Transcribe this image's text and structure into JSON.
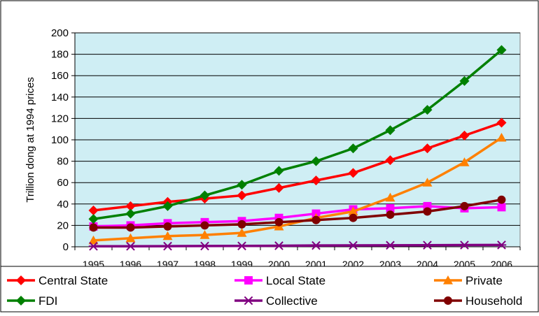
{
  "chart_data": {
    "type": "line",
    "title": "",
    "xlabel": "",
    "ylabel": "Trillion dong at 1994 prices",
    "ylim": [
      0,
      200
    ],
    "yticks": [
      0,
      20,
      40,
      60,
      80,
      100,
      120,
      140,
      160,
      180,
      200
    ],
    "grid": true,
    "plot_background": "#cfeef4",
    "legend_position": "bottom",
    "categories": [
      "1995",
      "1996",
      "1997",
      "1998",
      "1999",
      "2000",
      "2001",
      "2002",
      "2003",
      "2004",
      "2005",
      "2006"
    ],
    "series": [
      {
        "name": "Central State",
        "color": "#ff0000",
        "marker": "diamond",
        "values": [
          34,
          38,
          42,
          45,
          48,
          55,
          62,
          69,
          81,
          92,
          104,
          116
        ]
      },
      {
        "name": "Local State",
        "color": "#ff00ff",
        "marker": "square",
        "values": [
          19,
          20,
          22,
          23,
          24,
          27,
          31,
          35,
          36,
          38,
          36,
          37
        ]
      },
      {
        "name": "Private",
        "color": "#ff8000",
        "marker": "triangle",
        "values": [
          6,
          8,
          10,
          11,
          13,
          19,
          27,
          33,
          46,
          60,
          79,
          102
        ]
      },
      {
        "name": "FDI",
        "color": "#008000",
        "marker": "diamond",
        "values": [
          26,
          31,
          38,
          48,
          58,
          71,
          80,
          92,
          109,
          128,
          155,
          184
        ]
      },
      {
        "name": "Collective",
        "color": "#800080",
        "marker": "asterisk",
        "values": [
          0.5,
          0.5,
          0.6,
          0.7,
          0.8,
          1.0,
          1.2,
          1.3,
          1.4,
          1.5,
          1.6,
          1.7
        ]
      },
      {
        "name": "Household",
        "color": "#800000",
        "marker": "circle",
        "values": [
          18,
          18,
          19,
          20,
          21,
          23,
          25,
          27,
          30,
          33,
          38,
          44
        ]
      }
    ]
  }
}
